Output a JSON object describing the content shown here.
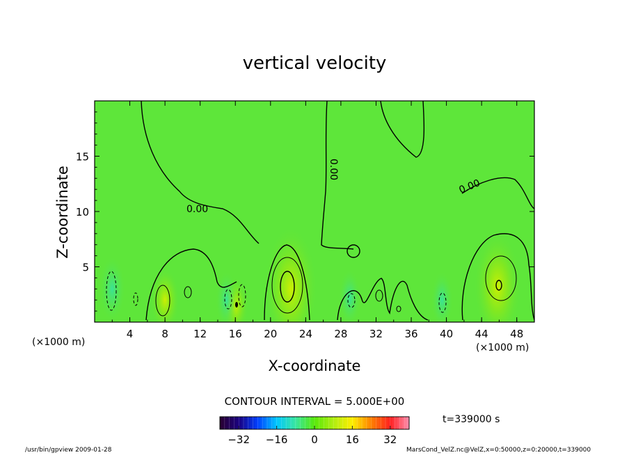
{
  "chart_data": {
    "type": "heatmap",
    "title": "vertical velocity",
    "xlabel": "X-coordinate",
    "ylabel": "Z-coordinate",
    "x_unit_label": "(×1000 m)",
    "xlim": [
      0,
      50
    ],
    "ylim": [
      0,
      20
    ],
    "x_ticks": [
      4,
      8,
      12,
      16,
      20,
      24,
      28,
      32,
      36,
      40,
      44,
      48
    ],
    "y_ticks": [
      5,
      10,
      15
    ],
    "contour_labels": [
      "0.00",
      "0.00",
      "0.00"
    ],
    "contour_interval_text": "CONTOUR INTERVAL = 5.000E+00",
    "colorbar": {
      "ticks": [
        -32,
        -16,
        0,
        16,
        32
      ],
      "range": [
        -40,
        40
      ],
      "colors": [
        "#2a0030",
        "#1a0080",
        "#0040ff",
        "#00c8ff",
        "#39e6a0",
        "#58e80a",
        "#b0ee10",
        "#ffee00",
        "#ff8000",
        "#ff2020",
        "#ff90b0"
      ]
    },
    "background_color": "#5ee63a",
    "time_label": "t=339000 s",
    "updraft_cores": [
      {
        "x": 22.3,
        "z": 3.0,
        "value": 12
      },
      {
        "x": 45.8,
        "z": 3.2,
        "value": 10
      },
      {
        "x": 8.0,
        "z": 2.0,
        "value": 4
      },
      {
        "x": 16.0,
        "z": 1.5,
        "value": 3
      }
    ],
    "downdraft_cores": [
      {
        "x": 2.0,
        "z": 3.0,
        "value": -3
      },
      {
        "x": 15.0,
        "z": 2.0,
        "value": -2
      },
      {
        "x": 29.0,
        "z": 2.2,
        "value": -2
      },
      {
        "x": 39.5,
        "z": 2.0,
        "value": -2
      }
    ]
  },
  "footer": {
    "left": "/usr/bin/gpview   2009-01-28",
    "right": "MarsCond_VelZ.nc@VelZ,x=0:50000,z=0:20000,t=339000"
  }
}
